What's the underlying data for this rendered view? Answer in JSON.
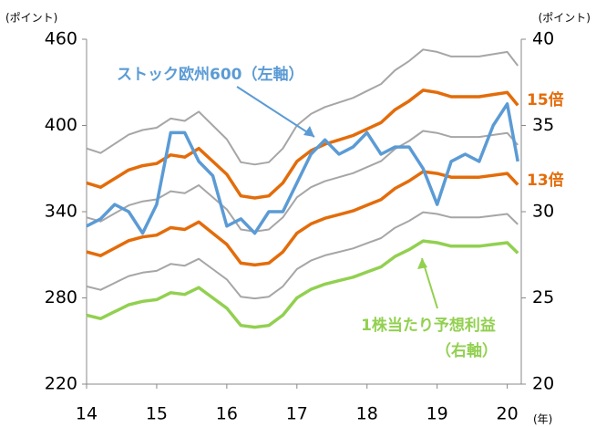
{
  "chart_data": {
    "type": "line",
    "x": [
      14.0,
      14.2,
      14.4,
      14.6,
      14.8,
      15.0,
      15.2,
      15.4,
      15.6,
      15.8,
      16.0,
      16.2,
      16.4,
      16.6,
      16.8,
      17.0,
      17.2,
      17.4,
      17.6,
      17.8,
      18.0,
      18.2,
      18.4,
      18.6,
      18.8,
      19.0,
      19.2,
      19.4,
      19.6,
      19.8,
      20.0,
      20.15
    ],
    "xlim": [
      14,
      20.2
    ],
    "xticks": [
      14,
      15,
      16,
      17,
      18,
      19,
      20
    ],
    "x_unit": "(年)",
    "ylim": [
      220,
      460
    ],
    "yticks": [
      220,
      280,
      340,
      400,
      460
    ],
    "y_unit": "(ポイント)",
    "y2lim": [
      20,
      40
    ],
    "y2ticks": [
      20,
      25,
      30,
      35,
      40
    ],
    "y2_unit": "(ポイント)",
    "series": [
      {
        "color": "#a6a6a6",
        "values": [
          384,
          380.8,
          387.2,
          393.6,
          396.8,
          398.4,
          404.8,
          403.2,
          409.6,
          400,
          390.4,
          374.4,
          372.8,
          374.4,
          384,
          400,
          408,
          412.8,
          416,
          419.2,
          424,
          428.8,
          438.4,
          444.8,
          452.8,
          451.2,
          448,
          448,
          448,
          449.6,
          451.2,
          441.6
        ]
      },
      {
        "name": "15倍",
        "color": "#e36c0a",
        "values": [
          360,
          357,
          363,
          369,
          372,
          373.5,
          379.5,
          378,
          384,
          375,
          366,
          351,
          349.5,
          351,
          360,
          375,
          382.5,
          387,
          390,
          393,
          397.5,
          402,
          411,
          417,
          424.5,
          423,
          420,
          420,
          420,
          421.5,
          423,
          414
        ]
      },
      {
        "color": "#a6a6a6",
        "values": [
          336,
          333.2,
          338.8,
          344.4,
          347.2,
          348.6,
          354.2,
          352.8,
          358.4,
          350,
          341.6,
          327.6,
          326.2,
          327.6,
          336,
          350,
          357,
          361.2,
          364,
          366.8,
          371,
          375.2,
          383.6,
          389.2,
          396.2,
          394.8,
          392,
          392,
          392,
          393.4,
          394.8,
          386.4
        ]
      },
      {
        "name": "13倍",
        "color": "#e36c0a",
        "values": [
          312,
          309.4,
          314.6,
          319.8,
          322.4,
          323.7,
          328.9,
          327.6,
          332.8,
          325,
          317.2,
          304.2,
          302.9,
          304.2,
          312,
          325,
          331.5,
          335.4,
          338,
          340.6,
          344.5,
          348.4,
          356.2,
          361.4,
          367.9,
          366.6,
          364,
          364,
          364,
          365.3,
          366.6,
          358.8
        ]
      },
      {
        "color": "#a6a6a6",
        "values": [
          288,
          285.6,
          290.4,
          295.2,
          297.6,
          298.8,
          303.6,
          302.4,
          307.2,
          300,
          292.8,
          280.8,
          279.6,
          280.8,
          288,
          300,
          306,
          309.6,
          312,
          314.4,
          318,
          321.6,
          328.8,
          333.6,
          339.6,
          338.4,
          336,
          336,
          336,
          337.2,
          338.4,
          331.2
        ]
      },
      {
        "name": "ストック欧州600（左軸）",
        "color": "#5b9bd5",
        "values": [
          330,
          335,
          345,
          340,
          325,
          345,
          395,
          395,
          375,
          365,
          330,
          335,
          325,
          340,
          340,
          360,
          380,
          390,
          380,
          385,
          395,
          380,
          385,
          385,
          370,
          345,
          375,
          380,
          375,
          400,
          415,
          375
        ]
      },
      {
        "name": "1株当たり予想利益",
        "note": "（右軸）",
        "color": "#92d050",
        "axis": "y2",
        "values": [
          24.0,
          23.8,
          24.2,
          24.6,
          24.8,
          24.9,
          25.3,
          25.2,
          25.6,
          25.0,
          24.4,
          23.4,
          23.3,
          23.4,
          24.0,
          25.0,
          25.5,
          25.8,
          26.0,
          26.2,
          26.5,
          26.8,
          27.4,
          27.8,
          28.3,
          28.2,
          28.0,
          28.0,
          28.0,
          28.1,
          28.2,
          27.6
        ]
      }
    ]
  }
}
